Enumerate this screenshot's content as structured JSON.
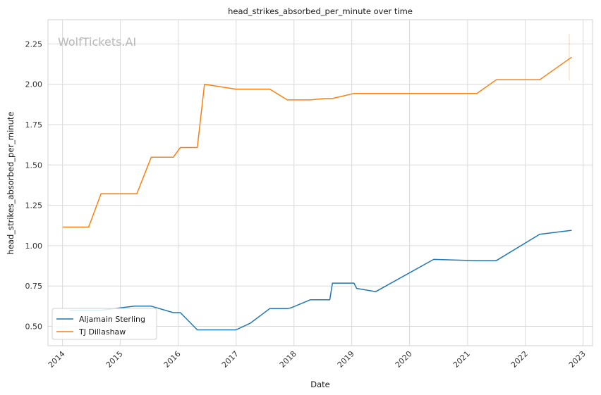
{
  "chart_data": {
    "type": "line",
    "title": "head_strikes_absorbed_per_minute over time",
    "xlabel": "Date",
    "ylabel": "head_strikes_absorbed_per_minute",
    "watermark": "WolfTickets.AI",
    "xlim": [
      "2013-10-01",
      "2023-03-01"
    ],
    "ylim": [
      0.38,
      2.4
    ],
    "x_ticks": [
      "2014",
      "2015",
      "2016",
      "2017",
      "2018",
      "2019",
      "2020",
      "2021",
      "2022",
      "2023"
    ],
    "y_ticks": [
      "0.50",
      "0.75",
      "1.00",
      "1.25",
      "1.50",
      "1.75",
      "2.00",
      "2.25"
    ],
    "y_tick_values": [
      0.5,
      0.75,
      1.0,
      1.25,
      1.5,
      1.75,
      2.0,
      2.25
    ],
    "grid": true,
    "legend_position": "bottom-left",
    "series": [
      {
        "name": "Aljamain Sterling",
        "color": "#1f77b4",
        "x": [
          "2014-02-15",
          "2014-09-01",
          "2015-04-01",
          "2015-07-15",
          "2015-12-01",
          "2016-01-15",
          "2016-05-01",
          "2016-12-31",
          "2017-04-01",
          "2017-08-01",
          "2017-11-20",
          "2017-12-15",
          "2018-04-15",
          "2018-08-15",
          "2018-09-01",
          "2019-01-15",
          "2019-02-01",
          "2019-06-01",
          "2020-06-01",
          "2021-03-01",
          "2021-07-01",
          "2022-04-01",
          "2022-10-20"
        ],
        "y": [
          0.6,
          0.6,
          0.625,
          0.625,
          0.585,
          0.585,
          0.478,
          0.478,
          0.52,
          0.61,
          0.61,
          0.615,
          0.665,
          0.665,
          0.768,
          0.768,
          0.735,
          0.715,
          0.915,
          0.907,
          0.907,
          1.07,
          1.095
        ]
      },
      {
        "name": "TJ Dillashaw",
        "color": "#ff7f0e",
        "x": [
          "2014-01-01",
          "2014-06-15",
          "2014-09-01",
          "2015-04-15",
          "2015-07-15",
          "2015-12-01",
          "2016-01-15",
          "2016-05-01",
          "2016-06-15",
          "2016-12-31",
          "2017-08-01",
          "2017-11-20",
          "2018-04-15",
          "2018-07-15",
          "2018-09-01",
          "2019-01-15",
          "2019-02-01",
          "2021-03-01",
          "2021-07-01",
          "2022-04-01",
          "2022-10-20"
        ],
        "y": [
          1.115,
          1.115,
          1.322,
          1.322,
          1.548,
          1.548,
          1.608,
          1.608,
          2.0,
          1.97,
          1.97,
          1.903,
          1.903,
          1.912,
          1.912,
          1.943,
          1.943,
          1.943,
          2.028,
          2.028,
          2.168
        ]
      }
    ]
  }
}
